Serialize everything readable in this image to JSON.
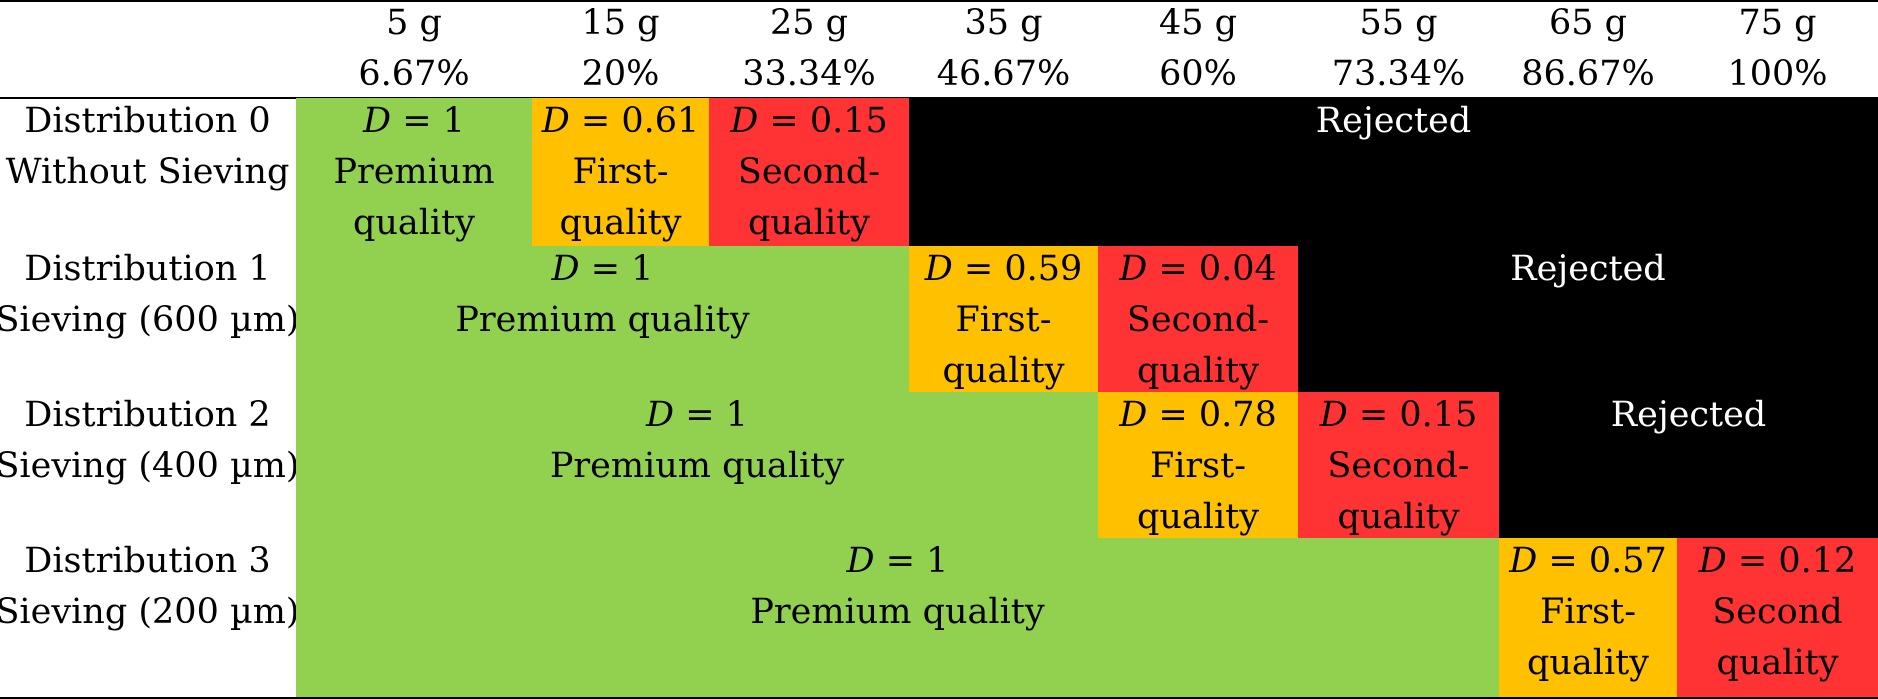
{
  "colors": {
    "premium": "#92d050",
    "first": "#ffc000",
    "second": "#ff3333",
    "rejected": "#000000"
  },
  "columns": [
    {
      "mass": "5 g",
      "percent": "6.67%"
    },
    {
      "mass": "15 g",
      "percent": "20%"
    },
    {
      "mass": "25 g",
      "percent": "33.34%"
    },
    {
      "mass": "35 g",
      "percent": "46.67%"
    },
    {
      "mass": "45 g",
      "percent": "60%"
    },
    {
      "mass": "55 g",
      "percent": "73.34%"
    },
    {
      "mass": "65 g",
      "percent": "86.67%"
    },
    {
      "mass": "75 g",
      "percent": "100%"
    }
  ],
  "rows": [
    {
      "label": [
        "Distribution 0",
        "Without Sieving"
      ],
      "cells": [
        {
          "type": "premium",
          "d": "1",
          "lines": [
            "Premium",
            "quality"
          ]
        },
        {
          "type": "first",
          "d": "0.61",
          "lines": [
            "First-",
            "quality"
          ]
        },
        {
          "type": "second",
          "d": "0.15",
          "lines": [
            "Second-",
            "quality"
          ]
        },
        {
          "type": "rejected",
          "text": "Rejected"
        }
      ]
    },
    {
      "label": [
        "Distribution 1",
        "Sieving (600 µm)"
      ],
      "cells": [
        {
          "type": "premium",
          "d": "1",
          "lines": [
            "Premium quality"
          ]
        },
        {
          "type": "first",
          "d": "0.59",
          "lines": [
            "First-",
            "quality"
          ]
        },
        {
          "type": "second",
          "d": "0.04",
          "lines": [
            "Second-",
            "quality"
          ]
        },
        {
          "type": "rejected",
          "text": "Rejected"
        }
      ]
    },
    {
      "label": [
        "Distribution 2",
        "Sieving (400 µm)"
      ],
      "cells": [
        {
          "type": "premium",
          "d": "1",
          "lines": [
            "Premium quality"
          ]
        },
        {
          "type": "first",
          "d": "0.78",
          "lines": [
            "First-",
            "quality"
          ]
        },
        {
          "type": "second",
          "d": "0.15",
          "lines": [
            "Second-",
            "quality"
          ]
        },
        {
          "type": "rejected",
          "text": "Rejected"
        }
      ]
    },
    {
      "label": [
        "Distribution 3",
        "Sieving (200 µm)"
      ],
      "cells": [
        {
          "type": "premium",
          "d": "1",
          "lines": [
            "Premium quality"
          ]
        },
        {
          "type": "first",
          "d": "0.57",
          "lines": [
            "First-",
            "quality"
          ]
        },
        {
          "type": "second",
          "d": "0.12",
          "lines": [
            "Second",
            "quality"
          ]
        }
      ]
    }
  ]
}
